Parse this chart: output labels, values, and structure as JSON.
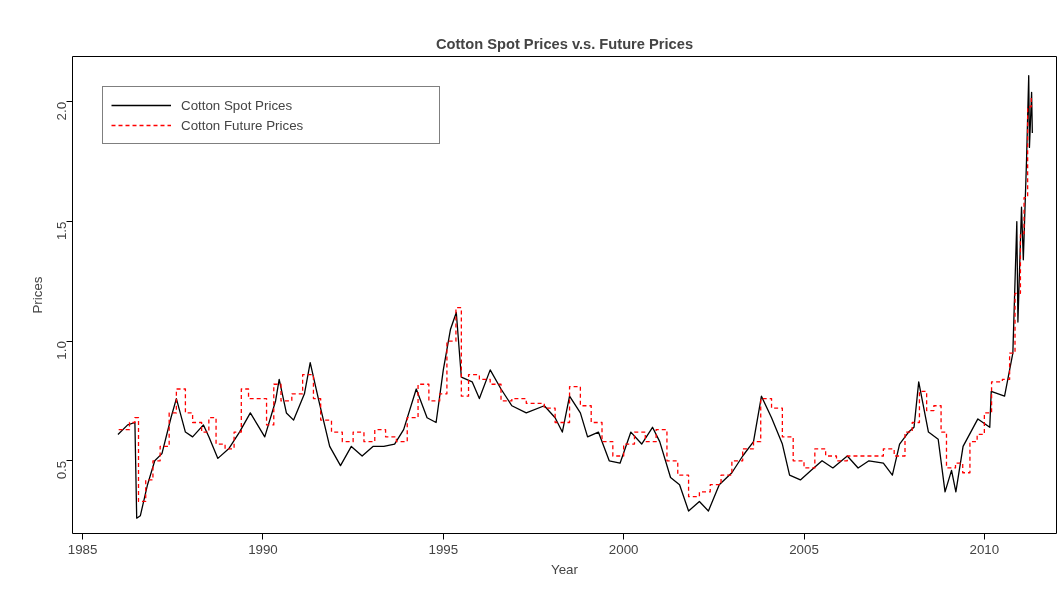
{
  "chart_data": {
    "type": "line",
    "title": "Cotton Spot Prices v.s. Future Prices",
    "xlabel": "Year",
    "ylabel": "Prices",
    "xlim": [
      1984.72,
      2012.0
    ],
    "ylim": [
      0.196,
      2.19
    ],
    "xticks": [
      1985,
      1990,
      1995,
      2000,
      2005,
      2010
    ],
    "yticks": [
      {
        "value": 0.5,
        "label": "0.5"
      },
      {
        "value": 1.0,
        "label": "1.0"
      },
      {
        "value": 1.5,
        "label": "1.5"
      },
      {
        "value": 2.0,
        "label": "2.0"
      }
    ],
    "grid": false,
    "legend": "top left",
    "series": [
      {
        "name": "Cotton Spot Prices",
        "line_style": "solid",
        "color": "#000000",
        "x": [
          1985.98,
          1986.25,
          1986.45,
          1986.5,
          1986.6,
          1986.8,
          1987.0,
          1987.2,
          1987.45,
          1987.6,
          1987.85,
          1988.05,
          1988.35,
          1988.5,
          1988.75,
          1989.05,
          1989.35,
          1989.65,
          1989.85,
          1990.05,
          1990.35,
          1990.45,
          1990.65,
          1990.85,
          1991.15,
          1991.31,
          1991.55,
          1991.85,
          1992.15,
          1992.45,
          1992.75,
          1993.05,
          1993.35,
          1993.65,
          1993.9,
          1994.25,
          1994.55,
          1994.8,
          1995.0,
          1995.2,
          1995.36,
          1995.5,
          1995.8,
          1996.0,
          1996.3,
          1996.6,
          1996.9,
          1997.3,
          1997.8,
          1998.1,
          1998.3,
          1998.5,
          1998.8,
          1999.0,
          1999.3,
          1999.6,
          1999.9,
          2000.2,
          2000.5,
          2000.8,
          2001.0,
          2001.3,
          2001.55,
          2001.8,
          2002.1,
          2002.35,
          2002.65,
          2003.0,
          2003.3,
          2003.6,
          2003.82,
          2004.1,
          2004.4,
          2004.6,
          2004.9,
          2005.2,
          2005.5,
          2005.8,
          2006.2,
          2006.5,
          2006.8,
          2007.2,
          2007.45,
          2007.65,
          2007.9,
          2008.05,
          2008.18,
          2008.45,
          2008.72,
          2008.91,
          2009.09,
          2009.21,
          2009.41,
          2009.82,
          2010.15,
          2010.19,
          2010.56,
          2010.79,
          2010.9,
          2010.93,
          2011.03,
          2011.08,
          2011.17,
          2011.23,
          2011.25,
          2011.31,
          2011.33
        ],
        "values": [
          0.61,
          0.65,
          0.66,
          0.26,
          0.27,
          0.4,
          0.5,
          0.53,
          0.68,
          0.76,
          0.62,
          0.6,
          0.65,
          0.6,
          0.51,
          0.55,
          0.62,
          0.7,
          0.65,
          0.6,
          0.75,
          0.84,
          0.7,
          0.67,
          0.78,
          0.91,
          0.75,
          0.56,
          0.48,
          0.56,
          0.52,
          0.56,
          0.56,
          0.57,
          0.63,
          0.8,
          0.68,
          0.66,
          0.88,
          1.05,
          1.12,
          0.85,
          0.83,
          0.76,
          0.88,
          0.8,
          0.73,
          0.7,
          0.73,
          0.68,
          0.62,
          0.77,
          0.7,
          0.6,
          0.62,
          0.5,
          0.49,
          0.62,
          0.57,
          0.64,
          0.58,
          0.43,
          0.4,
          0.29,
          0.33,
          0.29,
          0.4,
          0.45,
          0.52,
          0.58,
          0.77,
          0.68,
          0.57,
          0.44,
          0.42,
          0.46,
          0.5,
          0.47,
          0.52,
          0.47,
          0.5,
          0.49,
          0.44,
          0.57,
          0.62,
          0.64,
          0.83,
          0.62,
          0.59,
          0.37,
          0.46,
          0.37,
          0.56,
          0.675,
          0.64,
          0.79,
          0.77,
          0.95,
          1.5,
          1.08,
          1.56,
          1.34,
          1.76,
          2.11,
          1.81,
          2.04,
          1.87
        ]
      },
      {
        "name": "Cotton Future Prices",
        "type": "step",
        "line_style": "dashed",
        "color": "#ff0000",
        "x": [
          1986.0,
          1986.3,
          1986.45,
          1986.55,
          1986.75,
          1986.95,
          1987.15,
          1987.4,
          1987.6,
          1987.85,
          1988.05,
          1988.3,
          1988.5,
          1988.7,
          1988.95,
          1989.2,
          1989.4,
          1989.6,
          1989.9,
          1990.1,
          1990.3,
          1990.5,
          1990.8,
          1991.1,
          1991.4,
          1991.6,
          1991.9,
          1992.2,
          1992.5,
          1992.8,
          1993.1,
          1993.4,
          1993.7,
          1994.0,
          1994.3,
          1994.6,
          1994.9,
          1995.1,
          1995.35,
          1995.5,
          1995.7,
          1996.0,
          1996.3,
          1996.6,
          1996.9,
          1997.3,
          1997.8,
          1998.1,
          1998.5,
          1998.8,
          1999.1,
          1999.4,
          1999.7,
          2000.0,
          2000.3,
          2000.6,
          2000.9,
          2001.2,
          2001.5,
          2001.8,
          2002.1,
          2002.4,
          2002.7,
          2003.0,
          2003.3,
          2003.6,
          2003.8,
          2004.1,
          2004.4,
          2004.7,
          2005.0,
          2005.3,
          2005.6,
          2005.9,
          2006.2,
          2006.6,
          2006.9,
          2007.2,
          2007.5,
          2007.8,
          2008.0,
          2008.2,
          2008.4,
          2008.6,
          2008.8,
          2008.95,
          2009.2,
          2009.4,
          2009.6,
          2009.8,
          2010.0,
          2010.2,
          2010.5,
          2010.7,
          2010.85,
          2011.0,
          2011.1,
          2011.2,
          2011.3
        ],
        "values": [
          0.63,
          0.66,
          0.68,
          0.33,
          0.42,
          0.5,
          0.56,
          0.7,
          0.8,
          0.7,
          0.66,
          0.62,
          0.68,
          0.57,
          0.55,
          0.62,
          0.8,
          0.76,
          0.76,
          0.65,
          0.82,
          0.75,
          0.78,
          0.86,
          0.76,
          0.67,
          0.62,
          0.58,
          0.62,
          0.58,
          0.63,
          0.6,
          0.58,
          0.68,
          0.82,
          0.75,
          0.78,
          1.0,
          1.14,
          0.77,
          0.86,
          0.84,
          0.82,
          0.75,
          0.76,
          0.74,
          0.72,
          0.66,
          0.81,
          0.73,
          0.66,
          0.58,
          0.52,
          0.57,
          0.62,
          0.58,
          0.63,
          0.5,
          0.44,
          0.35,
          0.37,
          0.4,
          0.44,
          0.5,
          0.55,
          0.58,
          0.76,
          0.72,
          0.6,
          0.5,
          0.47,
          0.55,
          0.52,
          0.5,
          0.52,
          0.52,
          0.52,
          0.55,
          0.52,
          0.62,
          0.66,
          0.79,
          0.71,
          0.73,
          0.62,
          0.47,
          0.49,
          0.45,
          0.58,
          0.61,
          0.7,
          0.83,
          0.84,
          0.95,
          1.2,
          1.45,
          1.6,
          1.98,
          2.02
        ]
      }
    ]
  }
}
